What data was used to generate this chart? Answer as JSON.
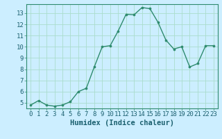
{
  "x": [
    0,
    1,
    2,
    3,
    4,
    5,
    6,
    7,
    8,
    9,
    10,
    11,
    12,
    13,
    14,
    15,
    16,
    17,
    18,
    19,
    20,
    21,
    22,
    23
  ],
  "y": [
    4.8,
    5.2,
    4.8,
    4.7,
    4.8,
    5.1,
    6.0,
    6.3,
    8.2,
    10.0,
    10.1,
    11.4,
    12.9,
    12.85,
    13.5,
    13.4,
    12.2,
    10.6,
    9.8,
    10.0,
    8.2,
    8.5,
    10.1,
    10.1
  ],
  "line_color": "#2e8b6e",
  "marker": "o",
  "marker_size": 2.2,
  "bg_color": "#cceeff",
  "grid_color": "#aaddcc",
  "xlabel": "Humidex (Indice chaleur)",
  "ylim": [
    4.5,
    13.8
  ],
  "xlim": [
    -0.5,
    23.5
  ],
  "yticks": [
    5,
    6,
    7,
    8,
    9,
    10,
    11,
    12,
    13
  ],
  "xticks": [
    0,
    1,
    2,
    3,
    4,
    5,
    6,
    7,
    8,
    9,
    10,
    11,
    12,
    13,
    14,
    15,
    16,
    17,
    18,
    19,
    20,
    21,
    22,
    23
  ],
  "tick_fontsize": 6.5,
  "xlabel_fontsize": 7.5,
  "label_color": "#1a5f6e",
  "spine_color": "#2e8b6e",
  "linewidth": 1.0
}
